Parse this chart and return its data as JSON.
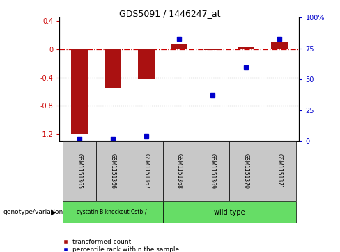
{
  "title": "GDS5091 / 1446247_at",
  "samples": [
    "GSM1151365",
    "GSM1151366",
    "GSM1151367",
    "GSM1151368",
    "GSM1151369",
    "GSM1151370",
    "GSM1151371"
  ],
  "red_values": [
    -1.2,
    -0.55,
    -0.42,
    0.07,
    -0.01,
    0.04,
    0.1
  ],
  "blue_values_pct": [
    2,
    2,
    4,
    83,
    37,
    60,
    83
  ],
  "ylim_left": [
    -1.3,
    0.45
  ],
  "ylim_right": [
    0,
    100
  ],
  "left_yticks": [
    -1.2,
    -0.8,
    -0.4,
    0.0,
    0.4
  ],
  "right_yticks": [
    0,
    25,
    50,
    75,
    100
  ],
  "left_ytick_labels": [
    "-1.2",
    "-0.8",
    "-0.4",
    "0",
    "0.4"
  ],
  "right_ytick_labels": [
    "0",
    "25",
    "50",
    "75",
    "100%"
  ],
  "group1_indices": [
    0,
    1,
    2
  ],
  "group2_indices": [
    3,
    4,
    5,
    6
  ],
  "group1_label": "cystatin B knockout Cstb-/-",
  "group2_label": "wild type",
  "group_color": "#66DD66",
  "sample_box_color": "#C8C8C8",
  "red_bar_color": "#AA1111",
  "blue_marker_color": "#0000CC",
  "zero_line_color": "#CC0000",
  "dotted_line_color": "#000000",
  "legend_red_label": "transformed count",
  "legend_blue_label": "percentile rank within the sample",
  "genotype_label": "genotype/variation",
  "ylabel_left_color": "#CC0000",
  "ylabel_right_color": "#0000CC",
  "bar_width": 0.5
}
